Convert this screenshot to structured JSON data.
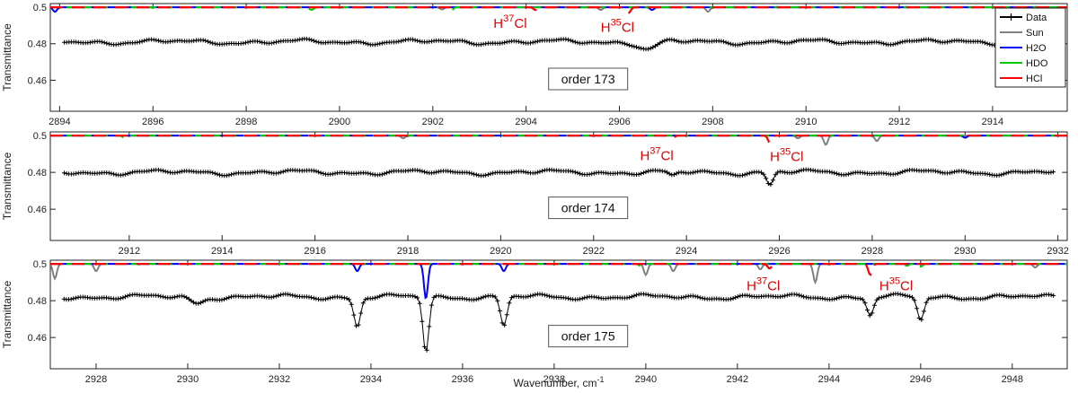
{
  "chart_data": [
    {
      "type": "line",
      "order_label": "order 173",
      "ylabel": "Transmittance",
      "xlim": [
        2893.8,
        2915.6
      ],
      "ylim": [
        0.443,
        0.502
      ],
      "xticks": [
        2894,
        2896,
        2898,
        2900,
        2902,
        2904,
        2906,
        2908,
        2910,
        2912,
        2914
      ],
      "yticks": [
        0.46,
        0.48,
        0.5
      ],
      "data_baseline": 0.481,
      "data_dips": [
        {
          "x": 2906.6,
          "depth": 0.004,
          "width": 0.25
        }
      ],
      "sun_lines": [
        {
          "x": 2902.2,
          "depth": 0.0012
        },
        {
          "x": 2905.6,
          "depth": 0.0015
        },
        {
          "x": 2907.9,
          "depth": 0.0025
        }
      ],
      "h2o_lines": [
        {
          "x": 2893.9,
          "depth": 0.0025
        },
        {
          "x": 2906.7,
          "depth": 0.0015
        }
      ],
      "hdo_lines": [
        {
          "x": 2899.4,
          "depth": 0.0015
        },
        {
          "x": 2902.4,
          "depth": 0.0015
        },
        {
          "x": 2905.1,
          "depth": 0.001
        }
      ],
      "hcl_lines": [
        {
          "x": 2904.2,
          "depth": 0.0015
        },
        {
          "x": 2906.2,
          "depth": 0.003
        }
      ],
      "annotations": [
        {
          "x": 2903.3,
          "y": 0.4955,
          "isotope": "H",
          "mass": "37",
          "element": "Cl"
        },
        {
          "x": 2905.6,
          "y": 0.4935,
          "isotope": "H",
          "mass": "35",
          "element": "Cl"
        }
      ],
      "legend": {
        "placement": "right",
        "entries": [
          {
            "name": "Data",
            "color": "#000000"
          },
          {
            "name": "Sun",
            "color": "#808080"
          },
          {
            "name": "H2O",
            "color": "#0000ff"
          },
          {
            "name": "HDO",
            "color": "#00cc00"
          },
          {
            "name": "HCl",
            "color": "#ff0000"
          }
        ]
      }
    },
    {
      "type": "line",
      "order_label": "order 174",
      "ylabel": "Transmittance",
      "xlim": [
        2910.3,
        2932.2
      ],
      "ylim": [
        0.443,
        0.502
      ],
      "xticks": [
        2912,
        2914,
        2916,
        2918,
        2920,
        2922,
        2924,
        2926,
        2928,
        2930,
        2932
      ],
      "yticks": [
        0.46,
        0.48,
        0.5
      ],
      "data_baseline": 0.48,
      "data_dips": [
        {
          "x": 2923.7,
          "depth": 0.0025,
          "width": 0.12
        },
        {
          "x": 2925.8,
          "depth": 0.007,
          "width": 0.1
        }
      ],
      "sun_lines": [
        {
          "x": 2917.9,
          "depth": 0.0015
        },
        {
          "x": 2926.4,
          "depth": 0.0015
        },
        {
          "x": 2927.0,
          "depth": 0.005
        },
        {
          "x": 2928.1,
          "depth": 0.003
        }
      ],
      "h2o_lines": [
        {
          "x": 2930.0,
          "depth": 0.0012
        }
      ],
      "hdo_lines": [
        {
          "x": 2911.9,
          "depth": 0.0012
        },
        {
          "x": 2917.5,
          "depth": 0.0008
        },
        {
          "x": 2929.0,
          "depth": 0.0008
        }
      ],
      "hcl_lines": [
        {
          "x": 2923.7,
          "depth": 0.0015
        },
        {
          "x": 2925.8,
          "depth": 0.004
        }
      ],
      "annotations": [
        {
          "x": 2923.0,
          "y": 0.4935,
          "isotope": "H",
          "mass": "37",
          "element": "Cl"
        },
        {
          "x": 2925.8,
          "y": 0.493,
          "isotope": "H",
          "mass": "35",
          "element": "Cl"
        }
      ]
    },
    {
      "type": "line",
      "order_label": "order 175",
      "ylabel": "Transmittance",
      "xlabel_text": "Wavenumber, cm",
      "xlabel_superscript": "-1",
      "xlim": [
        2927.0,
        2949.2
      ],
      "ylim": [
        0.443,
        0.502
      ],
      "xticks": [
        2928,
        2930,
        2932,
        2934,
        2936,
        2938,
        2940,
        2942,
        2944,
        2946,
        2948
      ],
      "yticks": [
        0.46,
        0.48,
        0.5
      ],
      "data_baseline": 0.482,
      "data_dips": [
        {
          "x": 2930.2,
          "depth": 0.003,
          "width": 0.2
        },
        {
          "x": 2933.7,
          "depth": 0.016,
          "width": 0.1
        },
        {
          "x": 2935.2,
          "depth": 0.03,
          "width": 0.09
        },
        {
          "x": 2936.9,
          "depth": 0.016,
          "width": 0.1
        },
        {
          "x": 2944.9,
          "depth": 0.01,
          "width": 0.1
        },
        {
          "x": 2946.0,
          "depth": 0.013,
          "width": 0.1
        }
      ],
      "sun_lines": [
        {
          "x": 2927.1,
          "depth": 0.008
        },
        {
          "x": 2928.0,
          "depth": 0.004
        },
        {
          "x": 2940.0,
          "depth": 0.006
        },
        {
          "x": 2940.6,
          "depth": 0.004
        },
        {
          "x": 2942.5,
          "depth": 0.003
        },
        {
          "x": 2943.7,
          "depth": 0.01
        },
        {
          "x": 2948.5,
          "depth": 0.002
        }
      ],
      "h2o_lines": [
        {
          "x": 2933.7,
          "depth": 0.004
        },
        {
          "x": 2935.2,
          "depth": 0.019
        },
        {
          "x": 2936.9,
          "depth": 0.004
        }
      ],
      "hdo_lines": [
        {
          "x": 2929.0,
          "depth": 0.001
        },
        {
          "x": 2939.9,
          "depth": 0.0015
        },
        {
          "x": 2945.7,
          "depth": 0.001
        },
        {
          "x": 2946.0,
          "depth": 0.0015
        }
      ],
      "hcl_lines": [
        {
          "x": 2942.7,
          "depth": 0.0025
        },
        {
          "x": 2944.9,
          "depth": 0.006
        }
      ],
      "annotations": [
        {
          "x": 2942.2,
          "y": 0.4925,
          "isotope": "H",
          "mass": "37",
          "element": "Cl"
        },
        {
          "x": 2945.1,
          "y": 0.4925,
          "isotope": "H",
          "mass": "35",
          "element": "Cl"
        }
      ]
    }
  ]
}
